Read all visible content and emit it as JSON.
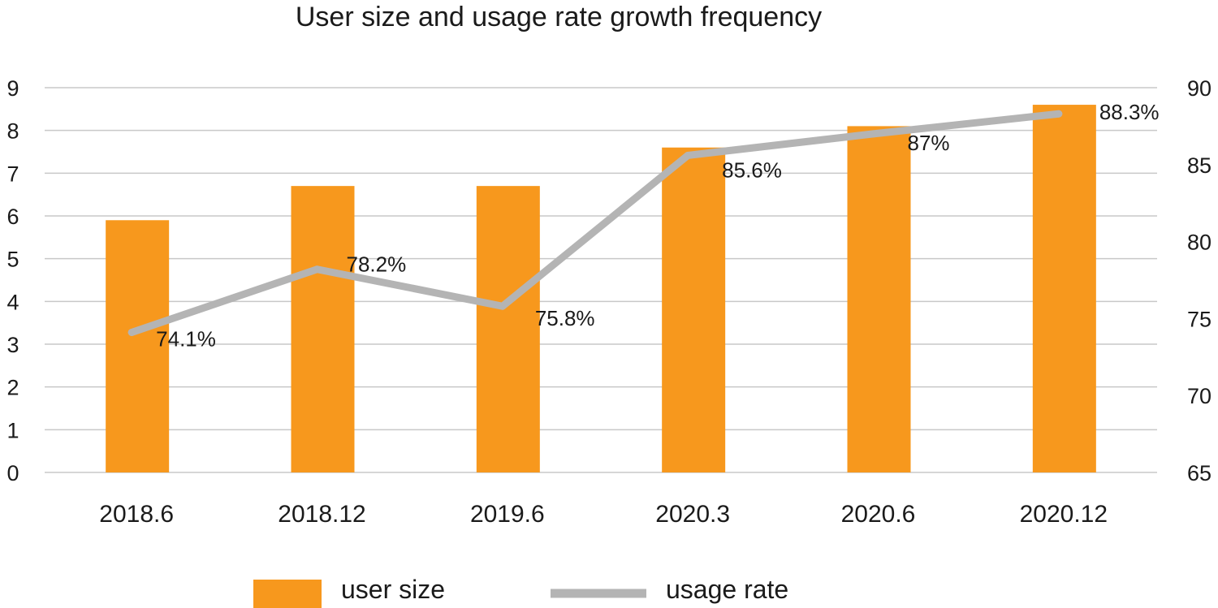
{
  "chart_data": {
    "type": "bar+line",
    "title": "User size and usage rate growth frequency",
    "categories": [
      "2018.6",
      "2018.12",
      "2019.6",
      "2020.3",
      "2020.6",
      "2020.12"
    ],
    "series": [
      {
        "name": "user size",
        "type": "bar",
        "axis": "left",
        "color": "#F7981D",
        "values": [
          5.9,
          6.7,
          6.7,
          7.6,
          8.1,
          8.6
        ]
      },
      {
        "name": "usage rate",
        "type": "line",
        "axis": "right",
        "color": "#B4B4B4",
        "values": [
          74.1,
          78.2,
          75.8,
          85.6,
          87,
          88.3
        ],
        "labels": [
          "74.1%",
          "78.2%",
          "75.8%",
          "85.6%",
          "87%",
          "88.3%"
        ]
      }
    ],
    "y_left": {
      "min": 0,
      "max": 9,
      "ticks": [
        "0",
        "1",
        "2",
        "3",
        "4",
        "5",
        "6",
        "7",
        "8",
        "9"
      ]
    },
    "y_right": {
      "min": 65,
      "max": 90,
      "ticks": [
        "65",
        "70",
        "75",
        "80",
        "85",
        "90"
      ]
    },
    "grid": true,
    "legend_position": "bottom"
  }
}
